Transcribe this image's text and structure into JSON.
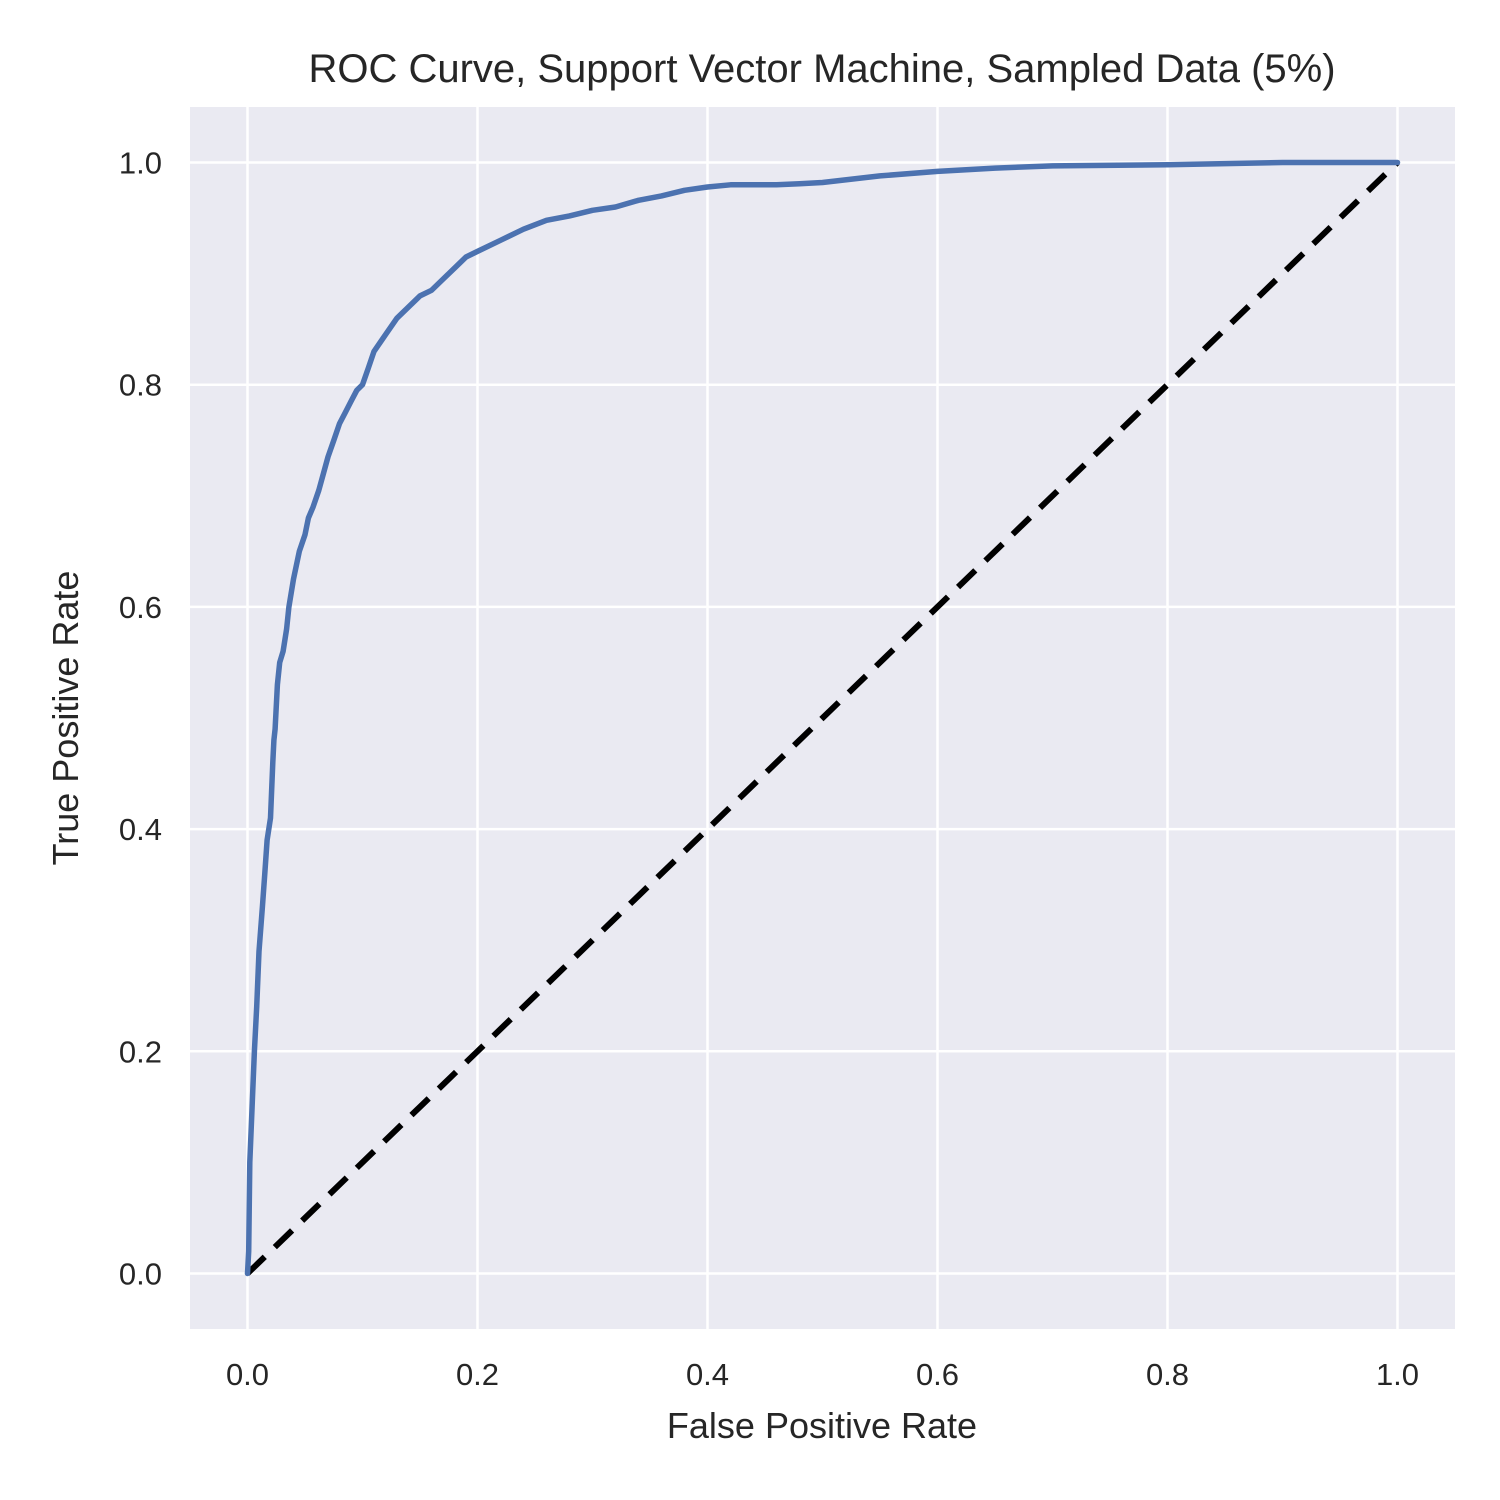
{
  "chart_data": {
    "type": "line",
    "title": "ROC Curve, Support Vector Machine, Sampled Data (5%)",
    "xlabel": "False Positive Rate",
    "ylabel": "True Positive Rate",
    "xlim": [
      -0.05,
      1.05
    ],
    "ylim": [
      -0.05,
      1.05
    ],
    "xticks": [
      0.0,
      0.2,
      0.4,
      0.6,
      0.8,
      1.0
    ],
    "yticks": [
      0.0,
      0.2,
      0.4,
      0.6,
      0.8,
      1.0
    ],
    "xtick_labels": [
      "0.0",
      "0.2",
      "0.4",
      "0.6",
      "0.8",
      "1.0"
    ],
    "ytick_labels": [
      "0.0",
      "0.2",
      "0.4",
      "0.6",
      "0.8",
      "1.0"
    ],
    "grid": true,
    "background_color": "#EAEAF2",
    "series": [
      {
        "style": "solid",
        "color": "#4C72B0",
        "x": [
          0.0,
          0.001,
          0.002,
          0.004,
          0.006,
          0.008,
          0.01,
          0.013,
          0.015,
          0.017,
          0.02,
          0.022,
          0.023,
          0.024,
          0.026,
          0.028,
          0.031,
          0.034,
          0.036,
          0.04,
          0.045,
          0.05,
          0.053,
          0.057,
          0.062,
          0.066,
          0.07,
          0.075,
          0.08,
          0.085,
          0.09,
          0.095,
          0.1,
          0.105,
          0.11,
          0.12,
          0.13,
          0.14,
          0.15,
          0.16,
          0.17,
          0.18,
          0.19,
          0.2,
          0.22,
          0.24,
          0.26,
          0.28,
          0.3,
          0.32,
          0.34,
          0.36,
          0.38,
          0.4,
          0.42,
          0.44,
          0.46,
          0.48,
          0.5,
          0.55,
          0.6,
          0.65,
          0.7,
          0.8,
          0.9,
          1.0
        ],
        "y": [
          0.0,
          0.02,
          0.1,
          0.15,
          0.2,
          0.24,
          0.29,
          0.33,
          0.36,
          0.39,
          0.41,
          0.46,
          0.48,
          0.49,
          0.53,
          0.55,
          0.56,
          0.58,
          0.6,
          0.625,
          0.65,
          0.665,
          0.68,
          0.69,
          0.705,
          0.72,
          0.735,
          0.75,
          0.765,
          0.775,
          0.785,
          0.795,
          0.8,
          0.815,
          0.83,
          0.845,
          0.86,
          0.87,
          0.88,
          0.885,
          0.895,
          0.905,
          0.915,
          0.92,
          0.93,
          0.94,
          0.948,
          0.952,
          0.957,
          0.96,
          0.966,
          0.97,
          0.975,
          0.978,
          0.98,
          0.98,
          0.98,
          0.981,
          0.982,
          0.988,
          0.992,
          0.995,
          0.997,
          0.998,
          1.0,
          1.0
        ]
      },
      {
        "style": "dashed",
        "color": "#000000",
        "x": [
          0.0,
          1.0
        ],
        "y": [
          0.0,
          1.0
        ]
      }
    ]
  }
}
